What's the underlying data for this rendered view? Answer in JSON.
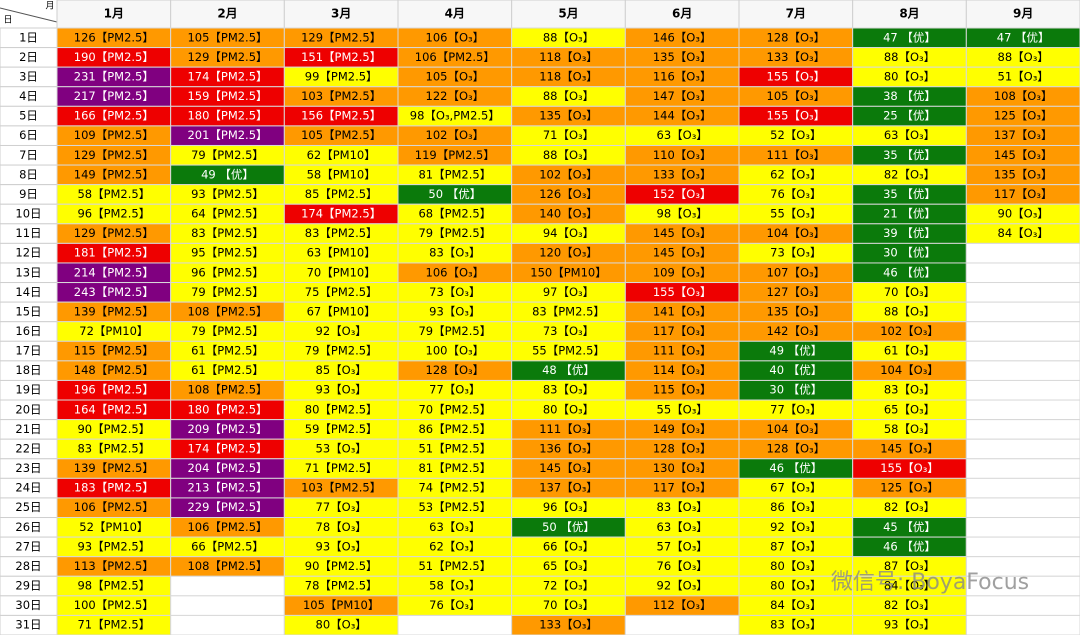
{
  "table": {
    "corner_top": "月",
    "corner_bottom": "日",
    "months": [
      "1月",
      "2月",
      "3月",
      "4月",
      "5月",
      "6月",
      "7月",
      "8月",
      "9月"
    ],
    "levels": [
      {
        "max": 50,
        "color": "#0b7a0b",
        "text": "#ffffff"
      },
      {
        "max": 100,
        "color": "#ffff00",
        "text": "#000000"
      },
      {
        "max": 150,
        "color": "#ff9900",
        "text": "#000000"
      },
      {
        "max": 200,
        "color": "#ee0000",
        "text": "#ffffff"
      },
      {
        "max": 300,
        "color": "#800080",
        "text": "#ffffff"
      }
    ],
    "rows": [
      {
        "day": "1日",
        "cells": [
          "126【PM2.5】",
          "105【PM2.5】",
          "129【PM2.5】",
          "106【O₃】",
          "88【O₃】",
          "146【O₃】",
          "128【O₃】",
          "47 【优】",
          "47 【优】"
        ]
      },
      {
        "day": "2日",
        "cells": [
          "190【PM2.5】",
          "129【PM2.5】",
          "151【PM2.5】",
          "106【PM2.5】",
          "118【O₃】",
          "135【O₃】",
          "133【O₃】",
          "88【O₃】",
          "88【O₃】"
        ]
      },
      {
        "day": "3日",
        "cells": [
          "231【PM2.5】",
          "174【PM2.5】",
          "99【PM2.5】",
          "105【O₃】",
          "118【O₃】",
          "116【O₃】",
          "155【O₃】",
          "80【O₃】",
          "51【O₃】"
        ]
      },
      {
        "day": "4日",
        "cells": [
          "217【PM2.5】",
          "159【PM2.5】",
          "103【PM2.5】",
          "122【O₃】",
          "88【O₃】",
          "147【O₃】",
          "105【O₃】",
          "38 【优】",
          "108【O₃】"
        ]
      },
      {
        "day": "5日",
        "cells": [
          "166【PM2.5】",
          "180【PM2.5】",
          "156【PM2.5】",
          "98【O₃,PM2.5】",
          "135【O₃】",
          "144【O₃】",
          "155【O₃】",
          "25 【优】",
          "125【O₃】"
        ]
      },
      {
        "day": "6日",
        "cells": [
          "109【PM2.5】",
          "201【PM2.5】",
          "105【PM2.5】",
          "102【O₃】",
          "71【O₃】",
          "63【O₃】",
          "52【O₃】",
          "63【O₃】",
          "137【O₃】"
        ]
      },
      {
        "day": "7日",
        "cells": [
          "129【PM2.5】",
          "79【PM2.5】",
          "62【PM10】",
          "119【PM2.5】",
          "88【O₃】",
          "110【O₃】",
          "111【O₃】",
          "35 【优】",
          "145【O₃】"
        ]
      },
      {
        "day": "8日",
        "cells": [
          "149【PM2.5】",
          "49 【优】",
          "58【PM10】",
          "81【PM2.5】",
          "102【O₃】",
          "133【O₃】",
          "62【O₃】",
          "82【O₃】",
          "135【O₃】"
        ]
      },
      {
        "day": "9日",
        "cells": [
          "58【PM2.5】",
          "93【PM2.5】",
          "85【PM2.5】",
          "50 【优】",
          "126【O₃】",
          "152【O₃】",
          "76【O₃】",
          "35 【优】",
          "117【O₃】"
        ]
      },
      {
        "day": "10日",
        "cells": [
          "96【PM2.5】",
          "64【PM2.5】",
          "174【PM2.5】",
          "68【PM2.5】",
          "140【O₃】",
          "98【O₃】",
          "55【O₃】",
          "21 【优】",
          "90【O₃】"
        ]
      },
      {
        "day": "11日",
        "cells": [
          "129【PM2.5】",
          "83【PM2.5】",
          "83【PM2.5】",
          "79【PM2.5】",
          "94【O₃】",
          "145【O₃】",
          "104【O₃】",
          "39 【优】",
          "84【O₃】"
        ]
      },
      {
        "day": "12日",
        "cells": [
          "181【PM2.5】",
          "95【PM2.5】",
          "63【PM10】",
          "83【O₃】",
          "120【O₃】",
          "145【O₃】",
          "73【O₃】",
          "30 【优】",
          null
        ]
      },
      {
        "day": "13日",
        "cells": [
          "214【PM2.5】",
          "96【PM2.5】",
          "70【PM10】",
          "106【O₃】",
          "150【PM10】",
          "109【O₃】",
          "107【O₃】",
          "46 【优】",
          null
        ]
      },
      {
        "day": "14日",
        "cells": [
          "243【PM2.5】",
          "79【PM2.5】",
          "75【PM2.5】",
          "73【O₃】",
          "97【O₃】",
          "155【O₃】",
          "127【O₃】",
          "70【O₃】",
          null
        ]
      },
      {
        "day": "15日",
        "cells": [
          "139【PM2.5】",
          "108【PM2.5】",
          "67【PM10】",
          "93【O₃】",
          "83【PM2.5】",
          "141【O₃】",
          "135【O₃】",
          "88【O₃】",
          null
        ]
      },
      {
        "day": "16日",
        "cells": [
          "72【PM10】",
          "79【PM2.5】",
          "92【O₃】",
          "79【PM2.5】",
          "73【O₃】",
          "117【O₃】",
          "142【O₃】",
          "102【O₃】",
          null
        ]
      },
      {
        "day": "17日",
        "cells": [
          "115【PM2.5】",
          "61【PM2.5】",
          "79【PM2.5】",
          "100【O₃】",
          "55【PM2.5】",
          "111【O₃】",
          "49 【优】",
          "61【O₃】",
          null
        ]
      },
      {
        "day": "18日",
        "cells": [
          "148【PM2.5】",
          "61【PM2.5】",
          "85【O₃】",
          "128【O₃】",
          "48 【优】",
          "114【O₃】",
          "40 【优】",
          "104【O₃】",
          null
        ]
      },
      {
        "day": "19日",
        "cells": [
          "196【PM2.5】",
          "108【PM2.5】",
          "93【O₃】",
          "77【O₃】",
          "83【O₃】",
          "115【O₃】",
          "30 【优】",
          "83【O₃】",
          null
        ]
      },
      {
        "day": "20日",
        "cells": [
          "164【PM2.5】",
          "180【PM2.5】",
          "80【PM2.5】",
          "70【PM2.5】",
          "80【O₃】",
          "55【O₃】",
          "77【O₃】",
          "65【O₃】",
          null
        ]
      },
      {
        "day": "21日",
        "cells": [
          "90【PM2.5】",
          "209【PM2.5】",
          "59【PM2.5】",
          "86【PM2.5】",
          "111【O₃】",
          "149【O₃】",
          "104【O₃】",
          "58【O₃】",
          null
        ]
      },
      {
        "day": "22日",
        "cells": [
          "83【PM2.5】",
          "174【PM2.5】",
          "53【O₃】",
          "51【PM2.5】",
          "136【O₃】",
          "128【O₃】",
          "128【O₃】",
          "145【O₃】",
          null
        ]
      },
      {
        "day": "23日",
        "cells": [
          "139【PM2.5】",
          "204【PM2.5】",
          "71【PM2.5】",
          "81【PM2.5】",
          "145【O₃】",
          "130【O₃】",
          "46 【优】",
          "155【O₃】",
          null
        ]
      },
      {
        "day": "24日",
        "cells": [
          "183【PM2.5】",
          "213【PM2.5】",
          "103【PM2.5】",
          "74【PM2.5】",
          "137【O₃】",
          "117【O₃】",
          "67【O₃】",
          "125【O₃】",
          null
        ]
      },
      {
        "day": "25日",
        "cells": [
          "106【PM2.5】",
          "229【PM2.5】",
          "77【O₃】",
          "53【PM2.5】",
          "96【O₃】",
          "83【O₃】",
          "86【O₃】",
          "82【O₃】",
          null
        ]
      },
      {
        "day": "26日",
        "cells": [
          "52【PM10】",
          "106【PM2.5】",
          "78【O₃】",
          "63【O₃】",
          "50 【优】",
          "63【O₃】",
          "92【O₃】",
          "45 【优】",
          null
        ]
      },
      {
        "day": "27日",
        "cells": [
          "93【PM2.5】",
          "66【PM2.5】",
          "93【O₃】",
          "62【O₃】",
          "66【O₃】",
          "57【O₃】",
          "87【O₃】",
          "46 【优】",
          null
        ]
      },
      {
        "day": "28日",
        "cells": [
          "113【PM2.5】",
          "108【PM2.5】",
          "90【PM2.5】",
          "51【PM2.5】",
          "65【O₃】",
          "76【O₃】",
          "80【O₃】",
          "87【O₃】",
          null
        ]
      },
      {
        "day": "29日",
        "cells": [
          "98【PM2.5】",
          null,
          "78【PM2.5】",
          "58【O₃】",
          "72【O₃】",
          "92【O₃】",
          "80【O₃】",
          "84【O₃】",
          null
        ]
      },
      {
        "day": "30日",
        "cells": [
          "100【PM2.5】",
          null,
          "105【PM10】",
          "76【O₃】",
          "70【O₃】",
          "112【O₃】",
          "84【O₃】",
          "82【O₃】",
          null
        ]
      },
      {
        "day": "31日",
        "cells": [
          "71【PM2.5】",
          null,
          "80【O₃】",
          null,
          "133【O₃】",
          null,
          "83【O₃】",
          "93【O₃】",
          null
        ]
      }
    ]
  },
  "watermark": "微信号: BoyaFocus"
}
